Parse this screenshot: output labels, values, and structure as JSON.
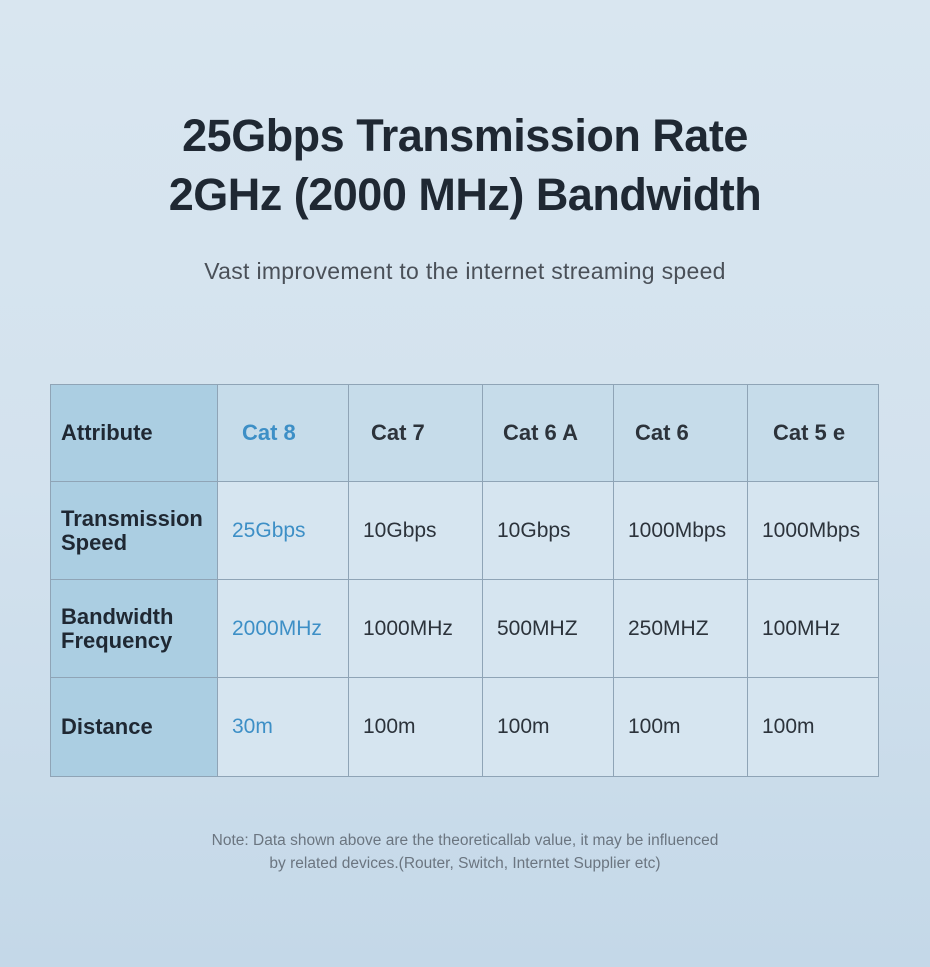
{
  "header": {
    "title": [
      "25Gbps Transmission Rate",
      "2GHz (2000 MHz) Bandwidth"
    ],
    "subtitle": "Vast improvement to the internet streaming speed"
  },
  "table": {
    "header": [
      "Attribute",
      "Cat 8",
      "Cat 7",
      "Cat 6 A",
      "Cat 6",
      "Cat 5 e"
    ],
    "rows": [
      [
        "Transmission\nSpeed",
        "25Gbps",
        "10Gbps",
        "10Gbps",
        "1000Mbps",
        "1000Mbps"
      ],
      [
        "Bandwidth\n Frequency",
        "2000MHz",
        "1000MHz",
        "500MHZ",
        "250MHZ",
        "100MHz"
      ],
      [
        "Distance",
        "30m",
        "100m",
        "100m",
        "100m",
        "100m"
      ]
    ]
  },
  "note": [
    "Note: Data shown above are the theoreticallab value, it may be influenced",
    "by related devices.(Router, Switch, Interntet Supplier etc)"
  ]
}
